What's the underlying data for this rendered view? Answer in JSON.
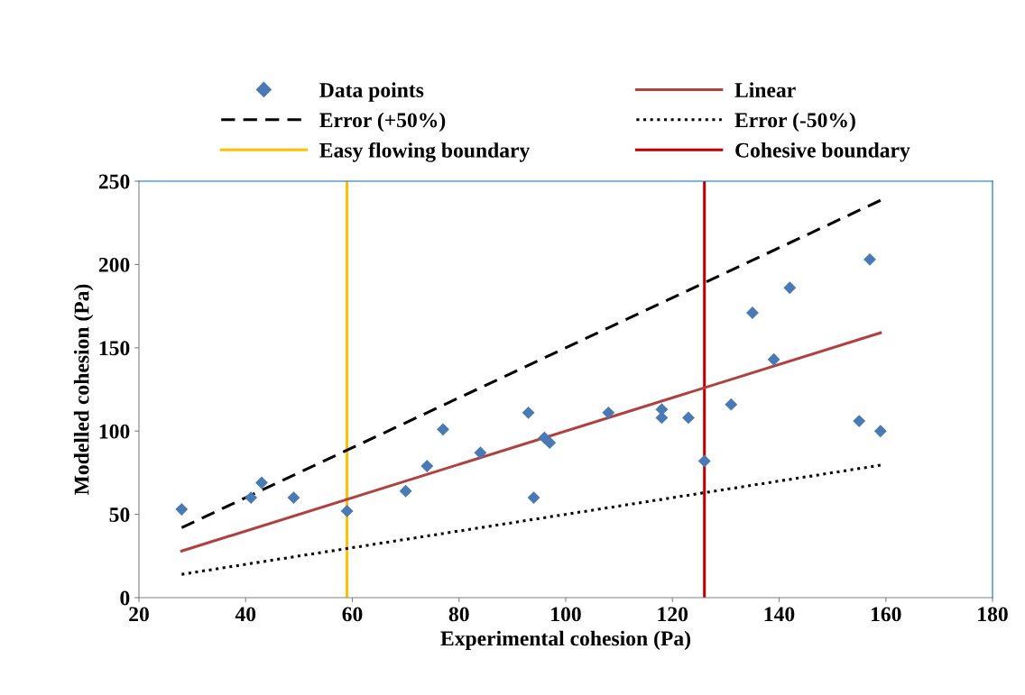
{
  "chart_data": {
    "type": "scatter",
    "xlabel": "Experimental cohesion (Pa)",
    "ylabel": "Modelled cohesion (Pa)",
    "xlim": [
      20,
      180
    ],
    "xticks": [
      20,
      40,
      60,
      80,
      100,
      120,
      140,
      160,
      180
    ],
    "ylim": [
      0,
      250
    ],
    "yticks": [
      0,
      50,
      100,
      150,
      200,
      250
    ],
    "grid": false,
    "legend": "top",
    "series": [
      {
        "name": "Data points",
        "marker": "diamond",
        "color": "#4a7ab5",
        "x": [
          28,
          41,
          43,
          49,
          59,
          70,
          74,
          77,
          84,
          93,
          94,
          96,
          97,
          108,
          118,
          118,
          123,
          126,
          131,
          135,
          139,
          142,
          155,
          157,
          159
        ],
        "values": [
          53,
          60,
          69,
          60,
          52,
          64,
          79,
          101,
          87,
          111,
          60,
          96,
          93,
          111,
          113,
          108,
          108,
          82,
          116,
          171,
          143,
          186,
          106,
          203,
          100
        ]
      },
      {
        "name": "Linear",
        "type": "line",
        "color": "#b0413e",
        "line_style": "solid",
        "x": [
          28,
          159
        ],
        "values": [
          28,
          159
        ]
      },
      {
        "name": "Error (+50%)",
        "type": "line",
        "color": "#000000",
        "line_style": "dashed",
        "x": [
          28,
          159
        ],
        "values": [
          42,
          238.5
        ]
      },
      {
        "name": "Error (-50%)",
        "type": "line",
        "color": "#000000",
        "line_style": "dotted",
        "x": [
          28,
          159
        ],
        "values": [
          14,
          79.5
        ]
      }
    ],
    "ref_lines": [
      {
        "axis": "x",
        "value": 59,
        "label": "Easy flowing boundary",
        "color": "#ffc000"
      },
      {
        "axis": "x",
        "value": 126,
        "label": "Cohesive boundary",
        "color": "#c00000"
      }
    ]
  }
}
